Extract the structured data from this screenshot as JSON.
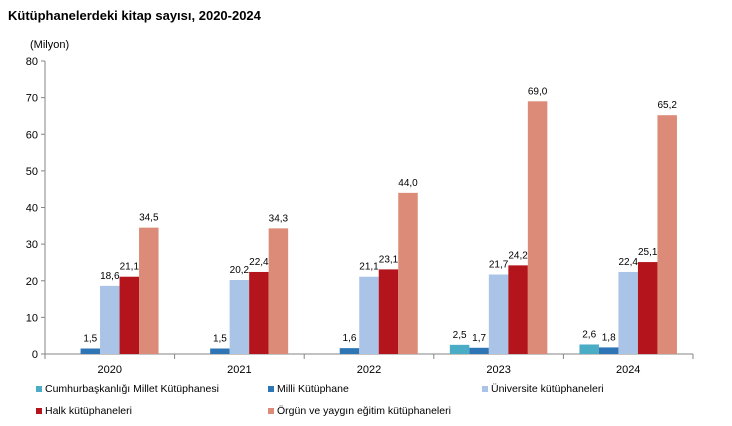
{
  "chart_data": {
    "type": "bar",
    "title": "Kütüphanelerdeki kitap sayısı, 2020-2024",
    "unit_label": "(Milyon)",
    "categories": [
      "2020",
      "2021",
      "2022",
      "2023",
      "2024"
    ],
    "ylim": [
      0,
      80
    ],
    "yticks": [
      "0",
      "10",
      "20",
      "30",
      "40",
      "50",
      "60",
      "70",
      "80"
    ],
    "grid": false,
    "legend_position": "bottom",
    "series": [
      {
        "name": "Cumhurbaşkanlığı Millet Kütüphanesi",
        "color": "#4BACC6",
        "values": [
          null,
          null,
          null,
          2.5,
          2.6
        ],
        "labels": [
          "",
          "",
          "",
          "2,5",
          "2,6"
        ]
      },
      {
        "name": "Milli Kütüphane",
        "color": "#2E75B6",
        "values": [
          1.5,
          1.5,
          1.6,
          1.7,
          1.8
        ],
        "labels": [
          "1,5",
          "1,5",
          "1,6",
          "1,7",
          "1,8"
        ]
      },
      {
        "name": "Üniversite kütüphaneleri",
        "color": "#A9C4E6",
        "values": [
          18.6,
          20.2,
          21.1,
          21.7,
          22.4
        ],
        "labels": [
          "18,6",
          "20,2",
          "21,1",
          "21,7",
          "22,4"
        ]
      },
      {
        "name": "Halk kütüphaneleri",
        "color": "#B4141B",
        "values": [
          21.1,
          22.4,
          23.1,
          24.2,
          25.1
        ],
        "labels": [
          "21,1",
          "22,4",
          "23,1",
          "24,2",
          "25,1"
        ]
      },
      {
        "name": "Örgün ve yaygın eğitim kütüphaneleri",
        "color": "#DB8B77",
        "values": [
          34.5,
          34.3,
          44.0,
          69.0,
          65.2
        ],
        "labels": [
          "34,5",
          "34,3",
          "44,0",
          "69,0",
          "65,2"
        ]
      }
    ]
  }
}
